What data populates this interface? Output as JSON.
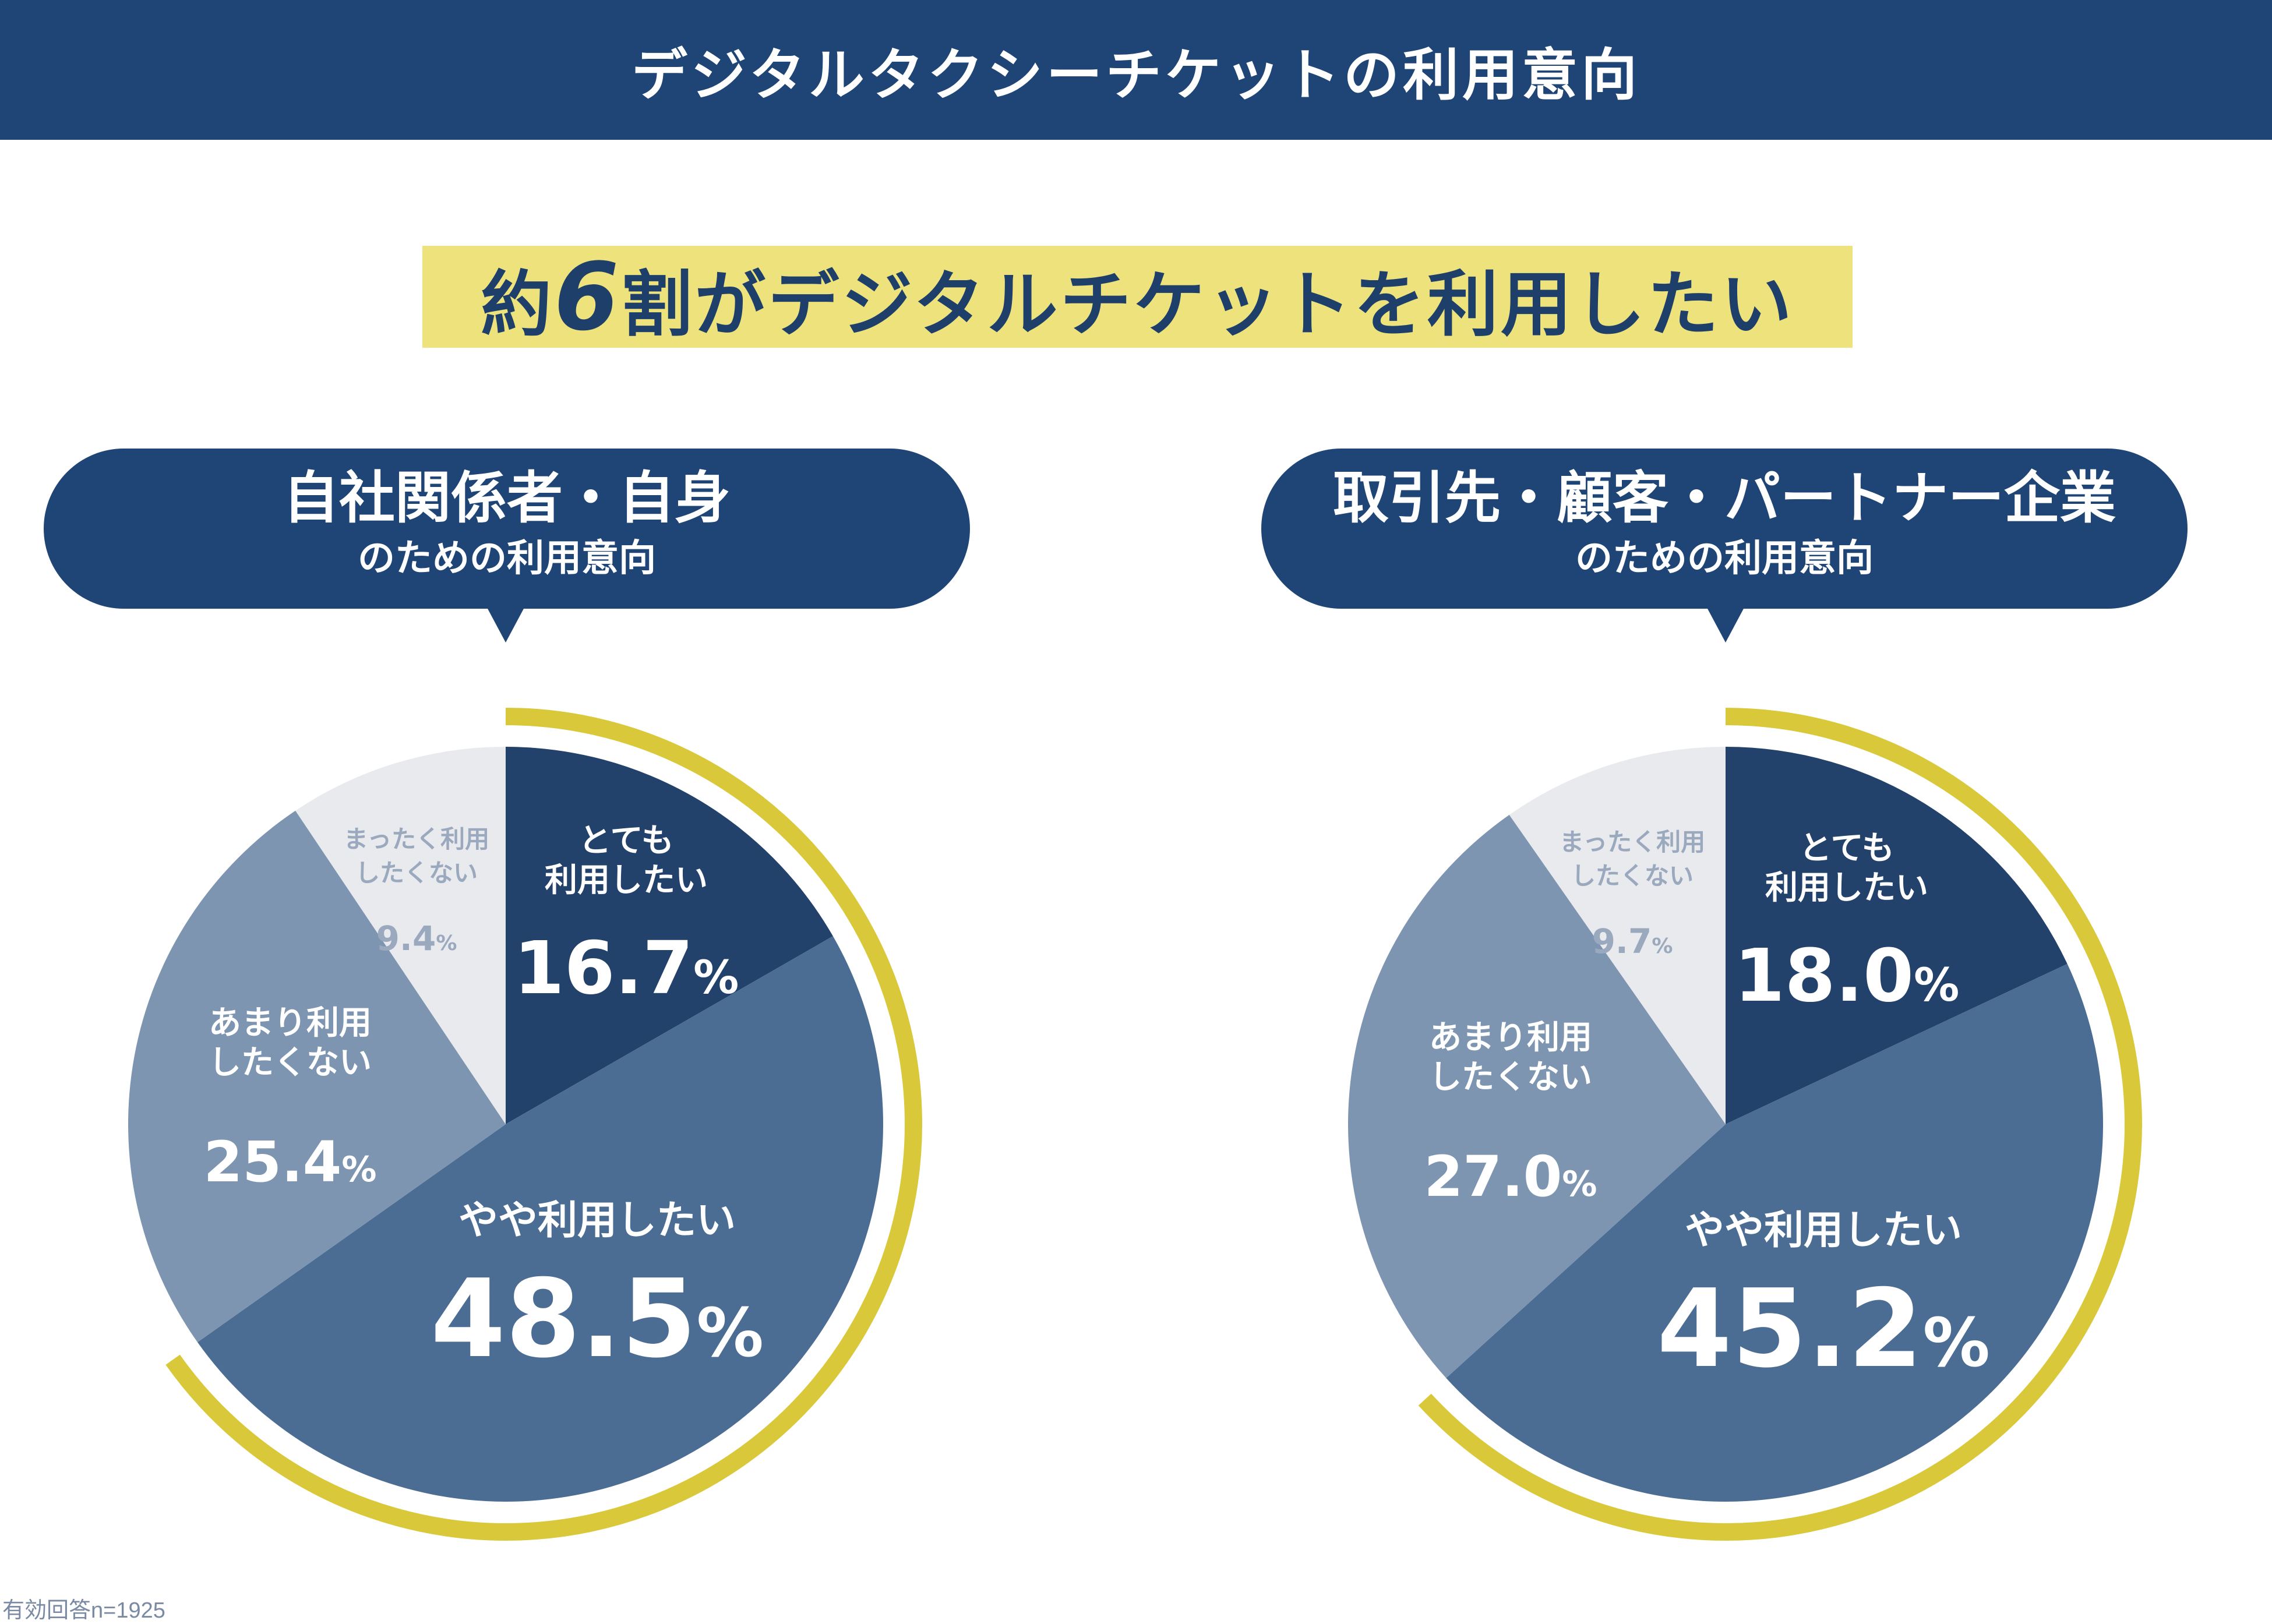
{
  "header": {
    "title": "デジタルタクシーチケットの利用意向"
  },
  "headline": {
    "prefix": "約",
    "number": "6",
    "suffix": "割がデジタルチケットを利用したい"
  },
  "footnote": "有効回答n=1925",
  "colors": {
    "header_bg": "#1f4577",
    "headline_bg": "#ede27c",
    "bubble_bg": "#1f4577",
    "ring": "#d9c93a",
    "very": "#22416b",
    "somewhat": "#4b6d94",
    "not_really": "#7d95b0",
    "not_at_all": "#e9eaee"
  },
  "chart_data": [
    {
      "type": "pie",
      "title_line1": "自社関係者・自身",
      "title_line2": "のための利用意向",
      "categories": [
        "とても利用したい",
        "やや利用したい",
        "あまり利用したくない",
        "まったく利用したくない"
      ],
      "values": [
        16.7,
        48.5,
        25.4,
        9.4
      ],
      "highlight_total": 65.2,
      "labels": [
        {
          "lines": [
            "とても",
            "利用したい"
          ],
          "value": "16.7",
          "unit": "%"
        },
        {
          "lines": [
            "やや利用したい"
          ],
          "value": "48.5",
          "unit": "%"
        },
        {
          "lines": [
            "あまり利用",
            "したくない"
          ],
          "value": "25.4",
          "unit": "%"
        },
        {
          "lines": [
            "まったく利用",
            "したくない"
          ],
          "value": "9.4",
          "unit": "%"
        }
      ]
    },
    {
      "type": "pie",
      "title_line1": "取引先・顧客・パートナー企業",
      "title_line2": "のための利用意向",
      "categories": [
        "とても利用したい",
        "やや利用したい",
        "あまり利用したくない",
        "まったく利用したくない"
      ],
      "values": [
        18.0,
        45.2,
        27.0,
        9.7
      ],
      "highlight_total": 63.2,
      "labels": [
        {
          "lines": [
            "とても",
            "利用したい"
          ],
          "value": "18.0",
          "unit": "%"
        },
        {
          "lines": [
            "やや利用したい"
          ],
          "value": "45.2",
          "unit": "%"
        },
        {
          "lines": [
            "あまり利用",
            "したくない"
          ],
          "value": "27.0",
          "unit": "%"
        },
        {
          "lines": [
            "まったく利用",
            "したくない"
          ],
          "value": "9.7",
          "unit": "%"
        }
      ]
    }
  ]
}
